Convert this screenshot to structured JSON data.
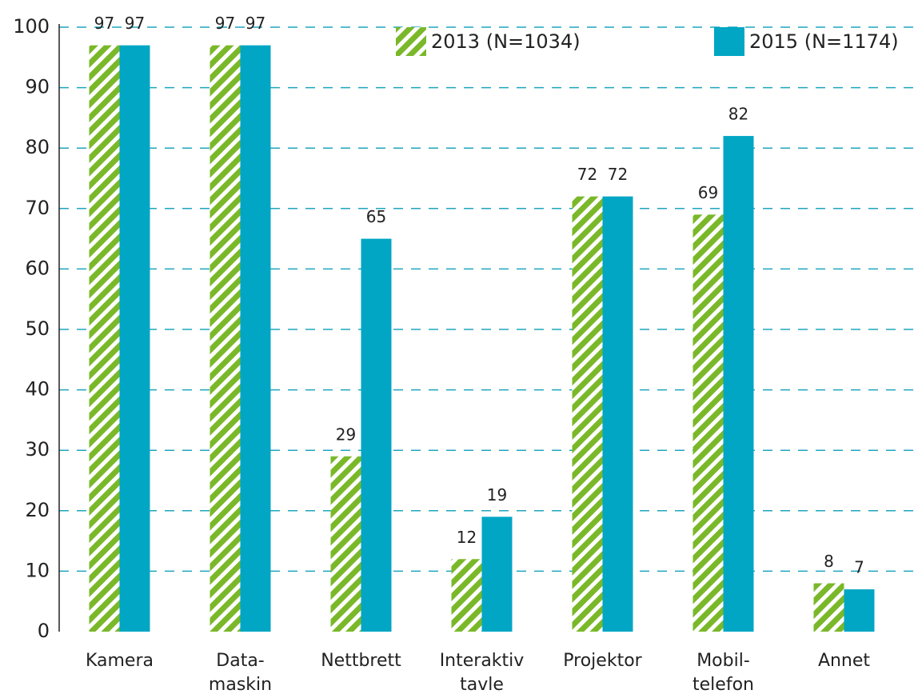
{
  "chart_data": {
    "type": "bar",
    "categories": [
      "Kamera",
      "Data-\nmaskin",
      "Nettbrett",
      "Interaktiv\ntavle",
      "Projektor",
      "Mobil-\ntelefon",
      "Annet"
    ],
    "series": [
      {
        "name": "2013 (N=1034)",
        "color": "#7ab829",
        "pattern": "hatch",
        "values": [
          97,
          97,
          29,
          12,
          72,
          69,
          8
        ]
      },
      {
        "name": "2015 (N=1174)",
        "color": "#00a6c4",
        "values": [
          97,
          97,
          65,
          19,
          72,
          82,
          7
        ]
      }
    ],
    "ylim": [
      0,
      100
    ],
    "yticks": [
      0,
      10,
      20,
      30,
      40,
      50,
      60,
      70,
      80,
      90,
      100
    ],
    "grid": true
  }
}
